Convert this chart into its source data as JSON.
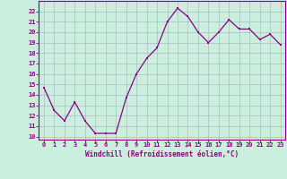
{
  "x": [
    0,
    1,
    2,
    3,
    4,
    5,
    6,
    7,
    8,
    9,
    10,
    11,
    12,
    13,
    14,
    15,
    16,
    17,
    18,
    19,
    20,
    21,
    22,
    23
  ],
  "y": [
    14.7,
    12.5,
    11.5,
    13.3,
    11.5,
    10.3,
    10.3,
    10.3,
    13.7,
    16.0,
    17.5,
    18.5,
    21.0,
    22.3,
    21.5,
    20.0,
    19.0,
    20.0,
    21.2,
    20.3,
    20.3,
    19.3,
    19.8,
    18.8
  ],
  "line_color": "#880088",
  "marker_color": "#880088",
  "bg_color": "#cceedd",
  "grid_color": "#aabbcc",
  "xlabel": "Windchill (Refroidissement éolien,°C)",
  "yticks": [
    10,
    11,
    12,
    13,
    14,
    15,
    16,
    17,
    18,
    19,
    20,
    21,
    22
  ],
  "ylim": [
    9.7,
    23.0
  ],
  "xlim": [
    -0.5,
    23.5
  ],
  "tick_label_color": "#880088",
  "axis_label_color": "#880088",
  "tick_fontsize": 5.0,
  "label_fontsize": 5.5
}
